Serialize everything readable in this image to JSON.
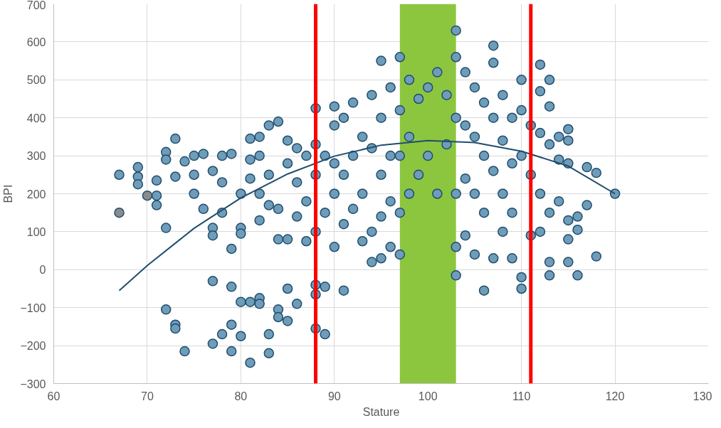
{
  "chart_data": {
    "type": "scatter",
    "xlabel": "Stature",
    "ylabel": "BPI",
    "xlim": [
      60,
      130
    ],
    "xticks": [
      60,
      70,
      80,
      90,
      100,
      110,
      120,
      130
    ],
    "ylim": [
      -300,
      700
    ],
    "yticks": [
      -300,
      -200,
      -100,
      0,
      100,
      200,
      300,
      400,
      500,
      600,
      700
    ],
    "grid": true,
    "series": [
      {
        "color": "#6f9cb8",
        "marker": "circle",
        "x": [
          72,
          73,
          73,
          74,
          77,
          77,
          78,
          79,
          79,
          79,
          80,
          80,
          81,
          81,
          82,
          82,
          83,
          83,
          84,
          84,
          85,
          85,
          86,
          88,
          88,
          88,
          89,
          89,
          91,
          67,
          69,
          69,
          69,
          71,
          71,
          71,
          72,
          72,
          72,
          73,
          73,
          74,
          75,
          75,
          75,
          76,
          76,
          77,
          77,
          77,
          78,
          78,
          78,
          79,
          79,
          80,
          80,
          80,
          81,
          81,
          81,
          82,
          82,
          82,
          82,
          83,
          83,
          83,
          84,
          84,
          84,
          85,
          85,
          85,
          86,
          86,
          86,
          87,
          87,
          87,
          88,
          88,
          88,
          88,
          89,
          89,
          90,
          90,
          90,
          90,
          90,
          91,
          91,
          91,
          92,
          92,
          92,
          93,
          93,
          93,
          94,
          94,
          94,
          94,
          95,
          95,
          95,
          95,
          95,
          96,
          96,
          96,
          96,
          97,
          97,
          97,
          97,
          97,
          98,
          98,
          98,
          99,
          99,
          100,
          100,
          101,
          101,
          102,
          102,
          103,
          103,
          103,
          103,
          103,
          103,
          104,
          104,
          104,
          104,
          105,
          105,
          105,
          105,
          106,
          106,
          106,
          106,
          107,
          107,
          107,
          107,
          107,
          108,
          108,
          108,
          108,
          109,
          109,
          109,
          109,
          110,
          110,
          110,
          110,
          110,
          111,
          111,
          111,
          112,
          112,
          112,
          112,
          112,
          113,
          113,
          113,
          113,
          113,
          113,
          114,
          114,
          114,
          115,
          115,
          115,
          115,
          115,
          115,
          116,
          116,
          116,
          117,
          117,
          118,
          118,
          120
        ],
        "values": [
          -105,
          -145,
          -155,
          -215,
          -30,
          -195,
          -170,
          -45,
          -215,
          -145,
          -175,
          -85,
          -245,
          -85,
          -75,
          -90,
          -170,
          -220,
          -105,
          -125,
          -135,
          -50,
          -90,
          -40,
          -65,
          -155,
          -170,
          -45,
          -55,
          250,
          270,
          245,
          225,
          235,
          195,
          170,
          310,
          290,
          110,
          345,
          245,
          285,
          300,
          250,
          200,
          305,
          160,
          110,
          90,
          260,
          300,
          230,
          150,
          55,
          305,
          200,
          110,
          95,
          345,
          290,
          240,
          350,
          300,
          200,
          130,
          380,
          250,
          170,
          390,
          160,
          80,
          340,
          280,
          80,
          320,
          230,
          140,
          300,
          180,
          75,
          425,
          330,
          250,
          100,
          300,
          150,
          430,
          380,
          280,
          200,
          60,
          400,
          250,
          120,
          440,
          300,
          160,
          350,
          200,
          75,
          460,
          320,
          100,
          20,
          550,
          400,
          250,
          140,
          30,
          480,
          300,
          180,
          60,
          560,
          420,
          300,
          150,
          40,
          500,
          350,
          200,
          450,
          250,
          480,
          300,
          520,
          200,
          460,
          330,
          630,
          560,
          400,
          200,
          60,
          -15,
          520,
          380,
          240,
          90,
          480,
          350,
          200,
          40,
          -55,
          440,
          300,
          150,
          590,
          545,
          400,
          260,
          30,
          460,
          340,
          200,
          100,
          400,
          280,
          150,
          30,
          500,
          420,
          300,
          -20,
          -50,
          380,
          250,
          90,
          540,
          470,
          360,
          200,
          100,
          500,
          430,
          330,
          150,
          20,
          -15,
          350,
          290,
          180,
          370,
          340,
          280,
          130,
          80,
          20,
          140,
          105,
          -15,
          270,
          170,
          255,
          35,
          200
        ]
      },
      {
        "color": "#8c8c8c",
        "marker": "circle",
        "x": [
          67,
          70
        ],
        "values": [
          150,
          195
        ]
      },
      {
        "type": "line",
        "marker": "none",
        "color": "#1f4e6e",
        "x": [
          67,
          70,
          75,
          80,
          85,
          90,
          95,
          100,
          105,
          110,
          115,
          120
        ],
        "values": [
          -55,
          11,
          109,
          189,
          252,
          299,
          328,
          340,
          335,
          312,
          273,
          200
        ]
      }
    ],
    "bands": [
      {
        "axis": "x",
        "from": 97,
        "to": 103,
        "color": "#8cc63f"
      }
    ],
    "ref_lines": [
      {
        "axis": "x",
        "value": 88,
        "color": "#ff0000"
      },
      {
        "axis": "x",
        "value": 111,
        "color": "#ff0000"
      }
    ]
  }
}
